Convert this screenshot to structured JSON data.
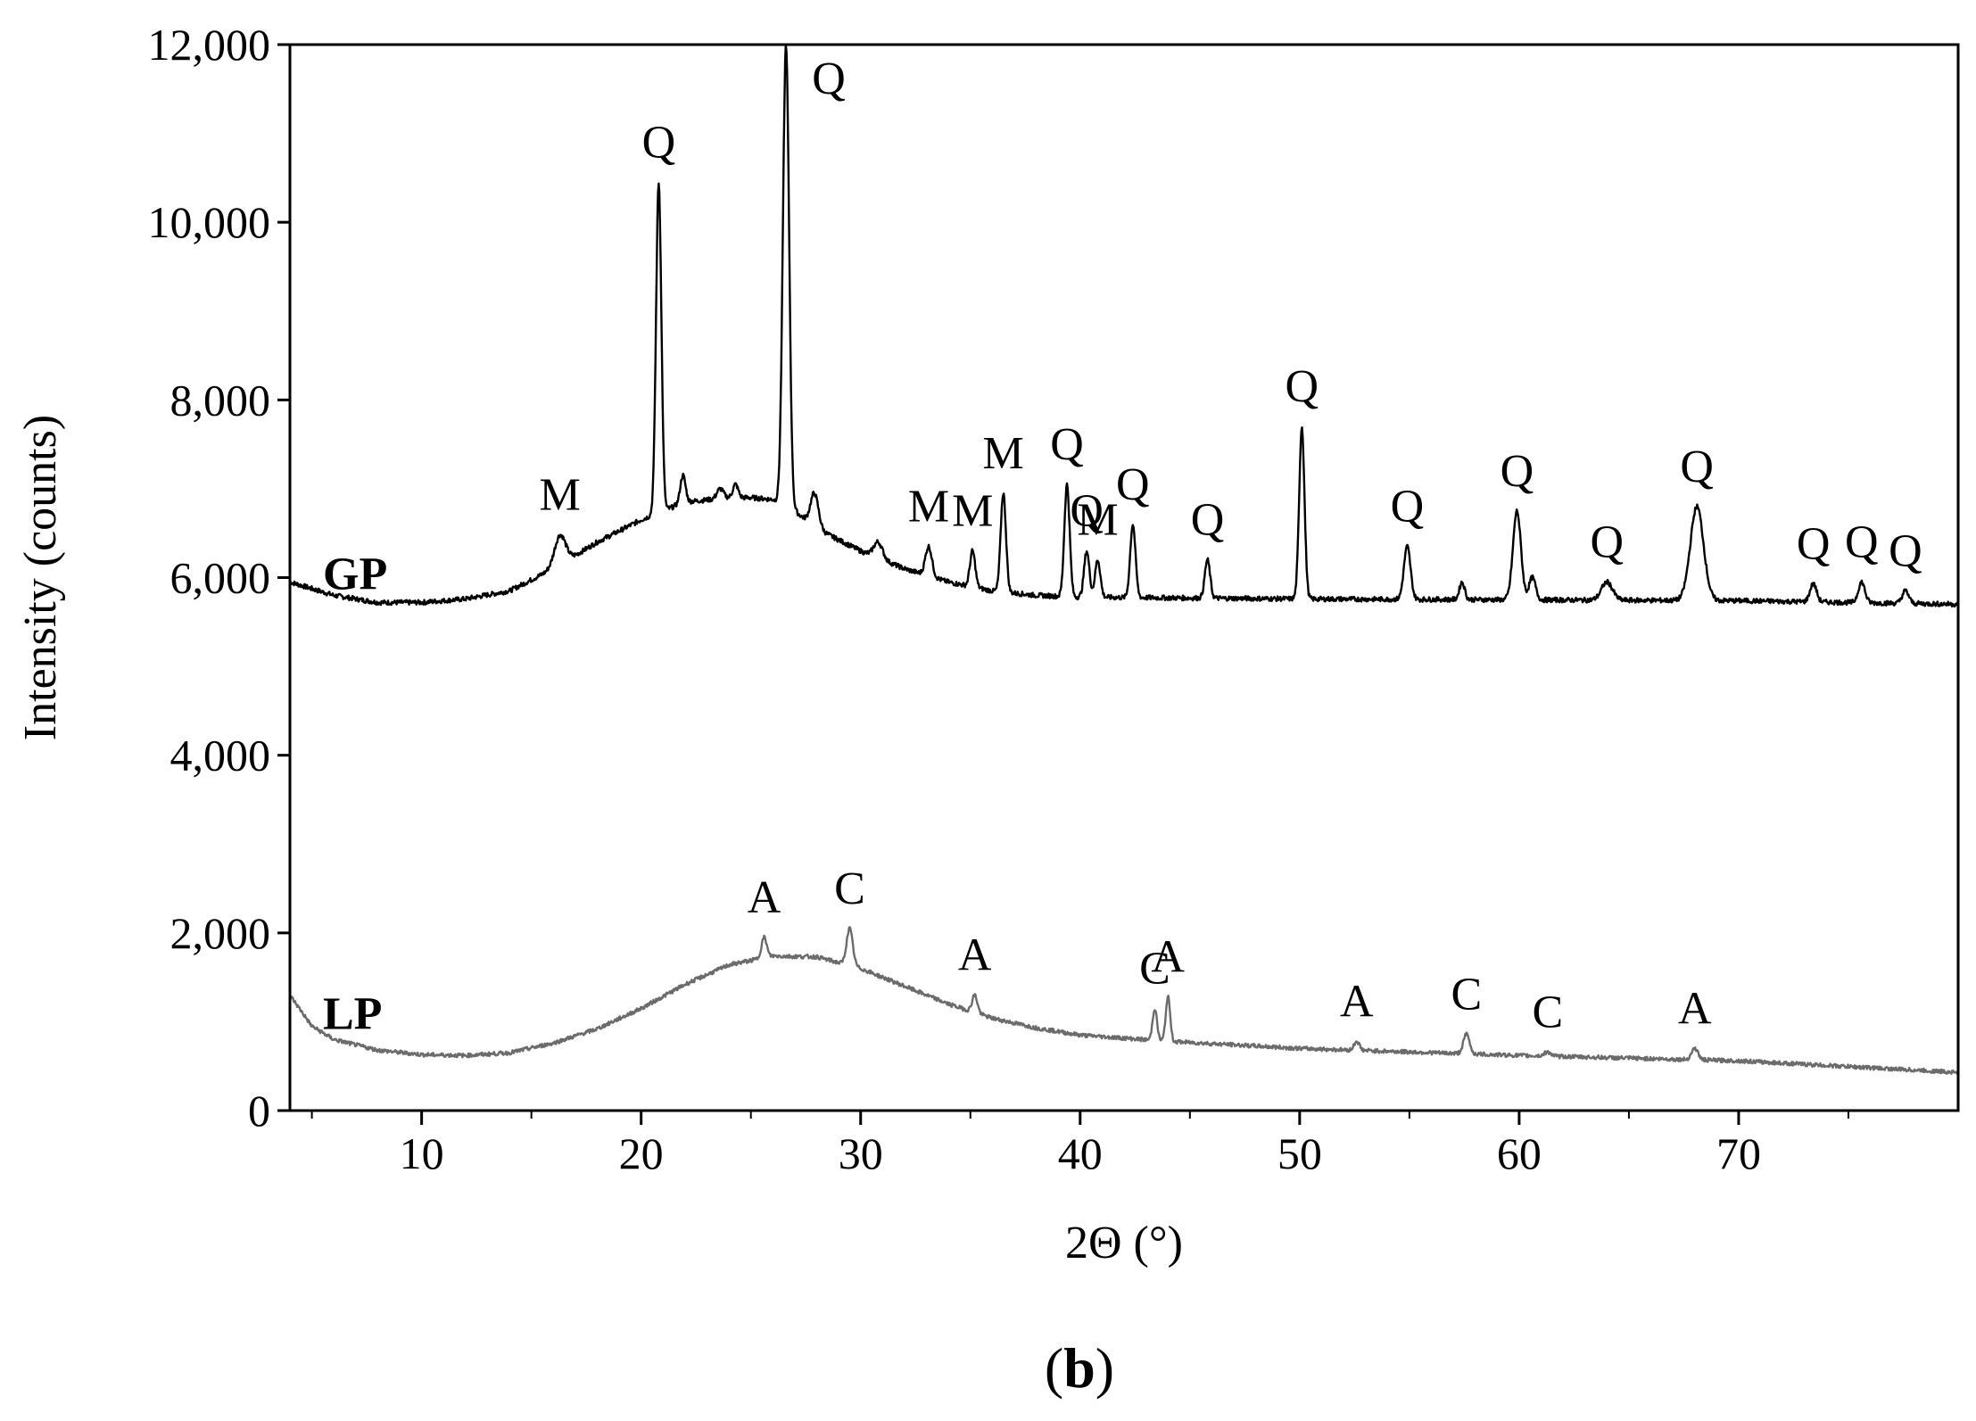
{
  "panel_label": {
    "open": "(",
    "letter": "b",
    "close": ")"
  },
  "chart_data": {
    "type": "line",
    "title": "",
    "xlabel": "2Θ (°)",
    "ylabel": "Intensity (counts)",
    "xlim": [
      4,
      80
    ],
    "ylim": [
      0,
      12000
    ],
    "x_ticks": [
      10,
      20,
      30,
      40,
      50,
      60,
      70
    ],
    "y_ticks": [
      0,
      2000,
      4000,
      6000,
      8000,
      10000,
      12000
    ],
    "y_tick_labels": [
      "0",
      "2,000",
      "4,000",
      "6,000",
      "8,000",
      "10,000",
      "12,000"
    ],
    "grid": false,
    "legend": "none",
    "series": [
      {
        "name": "GP",
        "color": "#000000",
        "baseline": [
          [
            4,
            5950
          ],
          [
            6,
            5800
          ],
          [
            8,
            5720
          ],
          [
            10,
            5720
          ],
          [
            12,
            5760
          ],
          [
            14,
            5850
          ],
          [
            16,
            6100
          ],
          [
            18,
            6400
          ],
          [
            20,
            6650
          ],
          [
            22,
            6850
          ],
          [
            24,
            6900
          ],
          [
            25,
            6900
          ],
          [
            26,
            6880
          ],
          [
            27,
            6750
          ],
          [
            28,
            6550
          ],
          [
            30,
            6300
          ],
          [
            32,
            6100
          ],
          [
            34,
            5950
          ],
          [
            36,
            5850
          ],
          [
            38,
            5800
          ],
          [
            40,
            5780
          ],
          [
            50,
            5760
          ],
          [
            60,
            5750
          ],
          [
            70,
            5740
          ],
          [
            80,
            5700
          ]
        ],
        "peaks": [
          {
            "x": 16.3,
            "y": 6480,
            "w": 0.25,
            "label": "M"
          },
          {
            "x": 20.8,
            "y": 10450,
            "w": 0.12,
            "label": "Q"
          },
          {
            "x": 21.9,
            "y": 7150,
            "w": 0.12,
            "label": ""
          },
          {
            "x": 23.6,
            "y": 7000,
            "w": 0.15,
            "label": ""
          },
          {
            "x": 24.3,
            "y": 7050,
            "w": 0.12,
            "label": ""
          },
          {
            "x": 26.6,
            "y": 12000,
            "w": 0.14,
            "label": "Q"
          },
          {
            "x": 27.9,
            "y": 6950,
            "w": 0.18,
            "label": ""
          },
          {
            "x": 30.8,
            "y": 6400,
            "w": 0.2,
            "label": ""
          },
          {
            "x": 33.1,
            "y": 6350,
            "w": 0.15,
            "label": "M"
          },
          {
            "x": 35.1,
            "y": 6300,
            "w": 0.12,
            "label": "M"
          },
          {
            "x": 36.5,
            "y": 6950,
            "w": 0.12,
            "label": "M"
          },
          {
            "x": 39.4,
            "y": 7050,
            "w": 0.12,
            "label": "Q"
          },
          {
            "x": 40.3,
            "y": 6300,
            "w": 0.12,
            "label": "Q"
          },
          {
            "x": 40.8,
            "y": 6200,
            "w": 0.12,
            "label": "M"
          },
          {
            "x": 42.4,
            "y": 6600,
            "w": 0.12,
            "label": "Q"
          },
          {
            "x": 45.8,
            "y": 6200,
            "w": 0.12,
            "label": "Q"
          },
          {
            "x": 50.1,
            "y": 7700,
            "w": 0.12,
            "label": "Q"
          },
          {
            "x": 54.9,
            "y": 6350,
            "w": 0.15,
            "label": "Q"
          },
          {
            "x": 57.4,
            "y": 5950,
            "w": 0.12,
            "label": ""
          },
          {
            "x": 59.9,
            "y": 6750,
            "w": 0.18,
            "label": "Q"
          },
          {
            "x": 60.6,
            "y": 6000,
            "w": 0.15,
            "label": ""
          },
          {
            "x": 64.0,
            "y": 5950,
            "w": 0.25,
            "label": "Q"
          },
          {
            "x": 68.1,
            "y": 6800,
            "w": 0.3,
            "label": "Q"
          },
          {
            "x": 73.4,
            "y": 5930,
            "w": 0.15,
            "label": "Q"
          },
          {
            "x": 75.6,
            "y": 5950,
            "w": 0.15,
            "label": "Q"
          },
          {
            "x": 77.6,
            "y": 5850,
            "w": 0.15,
            "label": "Q"
          }
        ]
      },
      {
        "name": "LP",
        "color": "#6b6b6b",
        "baseline": [
          [
            4,
            1300
          ],
          [
            5,
            950
          ],
          [
            6,
            800
          ],
          [
            8,
            680
          ],
          [
            10,
            630
          ],
          [
            12,
            620
          ],
          [
            14,
            650
          ],
          [
            16,
            760
          ],
          [
            18,
            920
          ],
          [
            20,
            1150
          ],
          [
            22,
            1420
          ],
          [
            24,
            1640
          ],
          [
            26,
            1740
          ],
          [
            28,
            1730
          ],
          [
            30,
            1600
          ],
          [
            32,
            1400
          ],
          [
            34,
            1200
          ],
          [
            36,
            1040
          ],
          [
            38,
            930
          ],
          [
            40,
            850
          ],
          [
            44,
            780
          ],
          [
            50,
            700
          ],
          [
            55,
            660
          ],
          [
            60,
            620
          ],
          [
            70,
            560
          ],
          [
            80,
            430
          ]
        ],
        "peaks": [
          {
            "x": 25.6,
            "y": 1950,
            "w": 0.12,
            "label": "A"
          },
          {
            "x": 29.5,
            "y": 2050,
            "w": 0.14,
            "label": "C"
          },
          {
            "x": 35.2,
            "y": 1300,
            "w": 0.12,
            "label": "A"
          },
          {
            "x": 43.4,
            "y": 1150,
            "w": 0.1,
            "label": "C"
          },
          {
            "x": 44.0,
            "y": 1280,
            "w": 0.1,
            "label": "A"
          },
          {
            "x": 52.6,
            "y": 780,
            "w": 0.12,
            "label": "A"
          },
          {
            "x": 57.6,
            "y": 860,
            "w": 0.14,
            "label": "C"
          },
          {
            "x": 61.3,
            "y": 660,
            "w": 0.15,
            "label": "C"
          },
          {
            "x": 68.0,
            "y": 700,
            "w": 0.15,
            "label": "A"
          }
        ]
      }
    ]
  }
}
